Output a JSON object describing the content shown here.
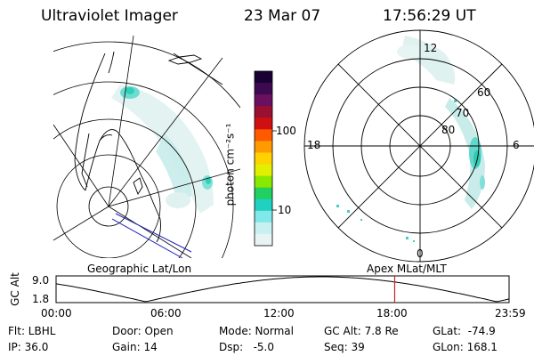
{
  "header": {
    "instrument": "Ultraviolet Imager",
    "date": "23 Mar 07",
    "time": "17:56:29 UT"
  },
  "left_panel": {
    "label": "Geographic Lat/Lon"
  },
  "right_panel": {
    "label": "Apex MLat/MLT",
    "lat_labels": [
      "80",
      "70",
      "60"
    ],
    "mlt_labels": [
      "12",
      "18",
      "6",
      "0"
    ]
  },
  "colorbar": {
    "label": "photon cm⁻²s⁻¹",
    "ticks": [
      "100",
      "10"
    ],
    "colors": [
      "#1a0033",
      "#3d0a52",
      "#6a1060",
      "#9a1030",
      "#d01010",
      "#ff5a00",
      "#ff9a00",
      "#ffd200",
      "#e0f000",
      "#8ae800",
      "#20d060",
      "#20d0c0",
      "#80e8e8",
      "#c8f0f0",
      "#e8f4f4"
    ]
  },
  "altitude_chart": {
    "ylabel": "GC Alt",
    "y_ticks": [
      "9.0",
      "1.8"
    ],
    "x_ticks": [
      "00:00",
      "06:00",
      "12:00",
      "18:00",
      "23:59"
    ],
    "current_time_hours": 17.94
  },
  "info": {
    "filter": "Flt: LBHL",
    "ip": "IP: 36.0",
    "door": "Door: Open",
    "gain": "Gain: 14",
    "mode": "Mode: Normal",
    "dsp": "Dsp:   -5.0",
    "gc_alt": "GC Alt: 7.8 Re",
    "seq": "Seq: 39",
    "glat": "GLat:  -74.9",
    "glon": "GLon: 168.1"
  }
}
